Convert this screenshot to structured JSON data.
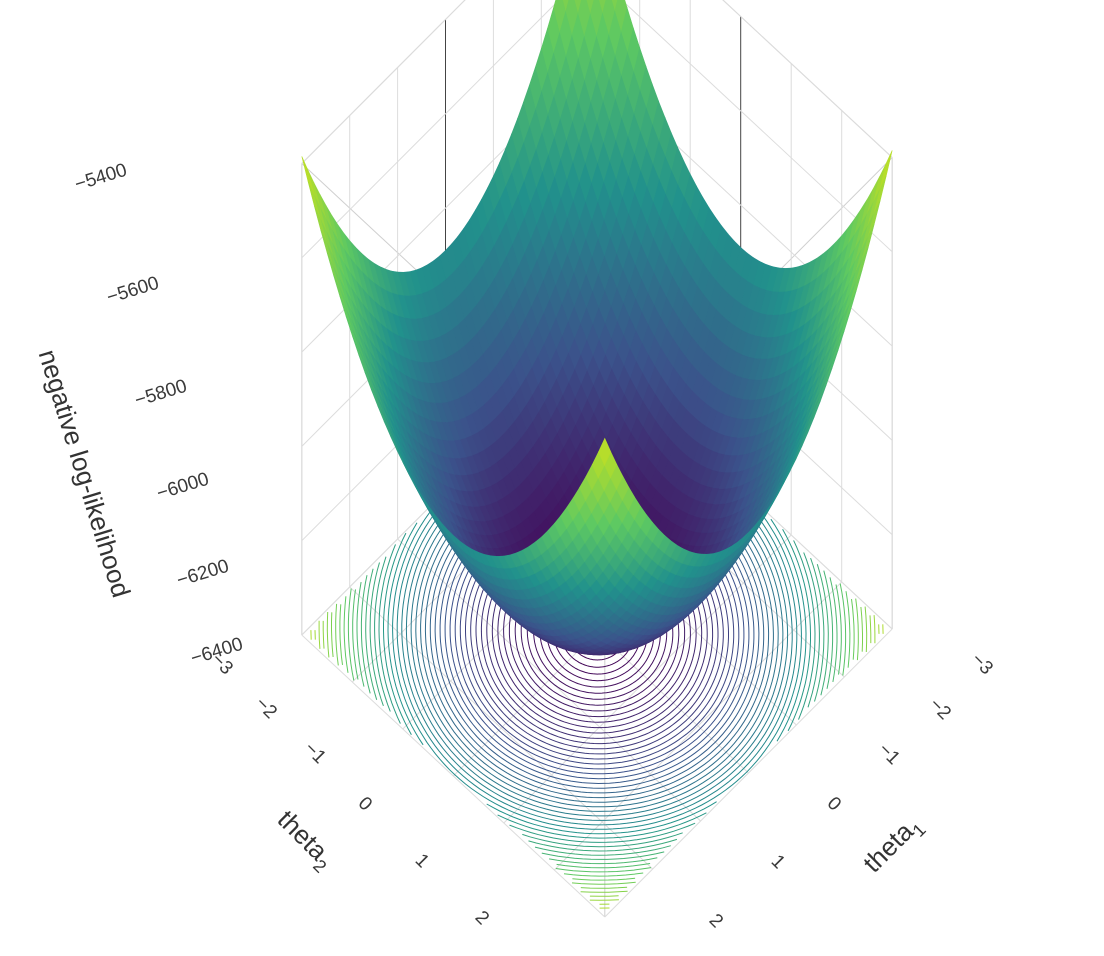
{
  "chart_data": {
    "type": "surface",
    "title": "",
    "zlabel": "negative log-likelihood",
    "xlabel": {
      "base": "theta",
      "subscript": "1"
    },
    "ylabel": {
      "base": "theta",
      "subscript": "2"
    },
    "x_ticks": [
      "−3",
      "−2",
      "−1",
      "0",
      "1",
      "2"
    ],
    "y_ticks": [
      "−3",
      "−2",
      "−1",
      "0",
      "1",
      "2"
    ],
    "z_ticks": [
      "−6400",
      "−6200",
      "−6000",
      "−5800",
      "−5600",
      "−5400"
    ],
    "xlim": [
      -3,
      3
    ],
    "ylim": [
      -3,
      3
    ],
    "zlim": [
      -6400,
      -5400
    ],
    "surface": {
      "minimum": -6350,
      "center": [
        0,
        0
      ],
      "value_at_corners": -5420,
      "value_at_edge_midpoints": -5890,
      "shape": "paraboloid"
    },
    "colorscale": [
      "#440154",
      "#3b528b",
      "#21918c",
      "#5ec962",
      "#b8de29"
    ],
    "projected_contours": true,
    "grid": true
  }
}
